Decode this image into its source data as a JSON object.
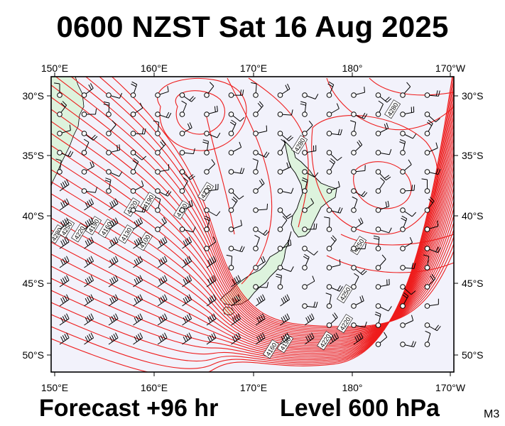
{
  "title": "0600 NZST Sat 16 Aug 2025",
  "forecast_label": "Forecast +96 hr",
  "level_label": "Level 600 hPa",
  "model_tag": "M3",
  "map": {
    "lon_labels": [
      "150°E",
      "160°E",
      "170°E",
      "180°",
      "170°W"
    ],
    "lat_labels": [
      "30°S",
      "35°S",
      "40°S",
      "45°S",
      "50°S"
    ],
    "contour_labels": [
      "4100",
      "4130",
      "4160",
      "4190",
      "4220",
      "4250",
      "4280"
    ],
    "colors": {
      "ocean": "#f2f2fb",
      "land": "#ddf3dd",
      "coast": "#000000",
      "contour": "#ee1c1c",
      "frame": "#000000"
    },
    "icons": [
      "wind-barb-icon",
      "station-circle-icon"
    ]
  }
}
